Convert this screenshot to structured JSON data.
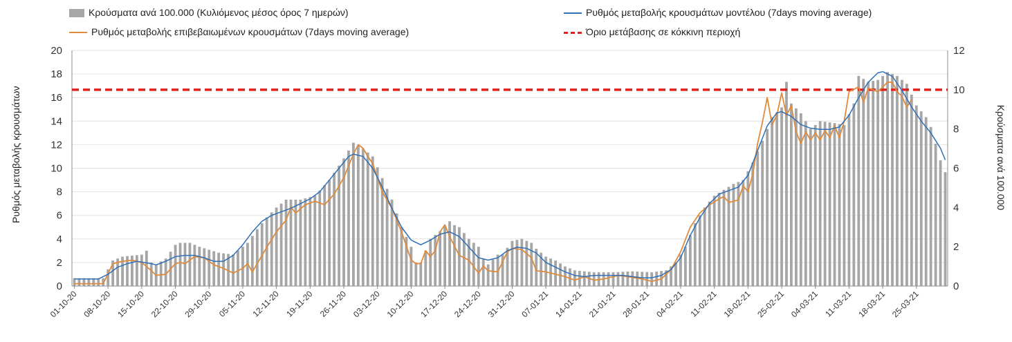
{
  "chart_data": {
    "type": "bar+line",
    "legend": {
      "bars": "Κρούσματα ανά 100.000 (Κυλιόμενος μέσος όρος 7 ημερών)",
      "orange": "Ρυθμός μεταβολής επιβεβαιωμένων κρουσμάτων (7days moving average)",
      "blue": "Ρυθμός μεταβολής κρουσμάτων μοντέλου (7days moving average)",
      "red": "Όριο μετάβασης σε κόκκινη περιοχή"
    },
    "ylabel_left": "Ρυθμός μεταβολής κρουσμάτων",
    "ylabel_right": "Κρούσματα ανά 100.000",
    "ylim_left": [
      0,
      20
    ],
    "yticks_left": [
      "0",
      "2",
      "4",
      "6",
      "8",
      "10",
      "12",
      "14",
      "16",
      "18",
      "20"
    ],
    "ylim_right": [
      0,
      12
    ],
    "yticks_right": [
      "0",
      "2",
      "4",
      "6",
      "8",
      "10",
      "12"
    ],
    "threshold_right": 10,
    "x_ticks": [
      "01-10-20",
      "08-10-20",
      "15-10-20",
      "22-10-20",
      "29-10-20",
      "05-11-20",
      "12-11-20",
      "19-11-20",
      "26-11-20",
      "03-12-20",
      "10-12-20",
      "17-12-20",
      "24-12-20",
      "31-12-20",
      "07-01-21",
      "14-01-21",
      "21-01-21",
      "28-01-21",
      "04-02-21",
      "11-02-21",
      "18-02-21",
      "25-02-21",
      "04-03-21",
      "11-03-21",
      "18-03-21",
      "25-03-21"
    ],
    "days": 182,
    "bars_keyframes": [
      [
        0,
        0.4
      ],
      [
        6,
        0.4
      ],
      [
        8,
        1.3
      ],
      [
        10,
        1.5
      ],
      [
        14,
        1.6
      ],
      [
        15,
        1.8
      ],
      [
        16,
        1.2
      ],
      [
        17,
        1.1
      ],
      [
        19,
        1.4
      ],
      [
        21,
        2.1
      ],
      [
        22,
        2.2
      ],
      [
        24,
        2.2
      ],
      [
        26,
        2.0
      ],
      [
        30,
        1.7
      ],
      [
        33,
        1.6
      ],
      [
        36,
        2.2
      ],
      [
        38,
        2.9
      ],
      [
        40,
        3.5
      ],
      [
        42,
        4.0
      ],
      [
        44,
        4.4
      ],
      [
        47,
        4.4
      ],
      [
        50,
        4.6
      ],
      [
        53,
        5.4
      ],
      [
        56,
        6.5
      ],
      [
        58,
        7.3
      ],
      [
        60,
        7.0
      ],
      [
        62,
        6.6
      ],
      [
        64,
        5.5
      ],
      [
        66,
        4.4
      ],
      [
        68,
        3.0
      ],
      [
        70,
        2.0
      ],
      [
        71,
        1.2
      ],
      [
        72,
        1.2
      ],
      [
        74,
        2.4
      ],
      [
        76,
        2.8
      ],
      [
        78,
        3.3
      ],
      [
        79,
        3.1
      ],
      [
        80,
        3.0
      ],
      [
        82,
        2.4
      ],
      [
        84,
        2.0
      ],
      [
        85,
        1.4
      ],
      [
        86,
        1.1
      ],
      [
        88,
        1.6
      ],
      [
        89,
        1.6
      ],
      [
        91,
        2.3
      ],
      [
        93,
        2.4
      ],
      [
        95,
        2.2
      ],
      [
        96,
        1.9
      ],
      [
        98,
        1.5
      ],
      [
        100,
        1.3
      ],
      [
        102,
        1.0
      ],
      [
        104,
        0.8
      ],
      [
        108,
        0.7
      ],
      [
        112,
        0.7
      ],
      [
        116,
        0.75
      ],
      [
        120,
        0.7
      ],
      [
        123,
        0.8
      ],
      [
        125,
        1.2
      ],
      [
        127,
        2.0
      ],
      [
        129,
        3.2
      ],
      [
        131,
        4.0
      ],
      [
        133,
        4.6
      ],
      [
        135,
        4.9
      ],
      [
        137,
        5.2
      ],
      [
        139,
        5.4
      ],
      [
        141,
        6.3
      ],
      [
        143,
        7.4
      ],
      [
        145,
        8.6
      ],
      [
        147,
        9.1
      ],
      [
        148,
        10.4
      ],
      [
        149,
        9.3
      ],
      [
        151,
        8.8
      ],
      [
        153,
        8.0
      ],
      [
        155,
        8.4
      ],
      [
        158,
        8.3
      ],
      [
        160,
        8.2
      ],
      [
        162,
        9.3
      ],
      [
        163,
        10.7
      ],
      [
        165,
        10.4
      ],
      [
        167,
        10.5
      ],
      [
        169,
        10.9
      ],
      [
        171,
        10.7
      ],
      [
        173,
        10.3
      ],
      [
        175,
        9.2
      ],
      [
        177,
        8.6
      ],
      [
        178,
        8.1
      ],
      [
        180,
        6.4
      ],
      [
        181,
        5.8
      ]
    ],
    "orange_keyframes": [
      [
        0,
        0.2
      ],
      [
        6,
        0.2
      ],
      [
        8,
        1.9
      ],
      [
        10,
        2.1
      ],
      [
        12,
        2.2
      ],
      [
        14,
        2.0
      ],
      [
        16,
        1.3
      ],
      [
        17,
        0.9
      ],
      [
        19,
        1.0
      ],
      [
        21,
        1.9
      ],
      [
        22,
        2.0
      ],
      [
        23,
        1.9
      ],
      [
        25,
        2.5
      ],
      [
        27,
        2.4
      ],
      [
        29,
        1.8
      ],
      [
        31,
        1.5
      ],
      [
        33,
        1.1
      ],
      [
        35,
        1.5
      ],
      [
        36,
        1.9
      ],
      [
        37,
        1.2
      ],
      [
        38,
        1.9
      ],
      [
        40,
        3.3
      ],
      [
        42,
        4.6
      ],
      [
        44,
        5.6
      ],
      [
        45,
        6.7
      ],
      [
        46,
        6.2
      ],
      [
        48,
        6.9
      ],
      [
        50,
        7.2
      ],
      [
        52,
        6.9
      ],
      [
        54,
        7.8
      ],
      [
        56,
        9.2
      ],
      [
        58,
        11.2
      ],
      [
        59,
        12.0
      ],
      [
        60,
        11.7
      ],
      [
        61,
        11.0
      ],
      [
        62,
        10.4
      ],
      [
        64,
        8.0
      ],
      [
        66,
        6.6
      ],
      [
        68,
        4.6
      ],
      [
        70,
        2.2
      ],
      [
        71,
        1.9
      ],
      [
        72,
        1.9
      ],
      [
        73,
        3.0
      ],
      [
        74,
        2.5
      ],
      [
        75,
        3.0
      ],
      [
        76,
        4.6
      ],
      [
        77,
        5.2
      ],
      [
        78,
        4.2
      ],
      [
        80,
        2.6
      ],
      [
        82,
        2.2
      ],
      [
        84,
        1.1
      ],
      [
        85,
        1.7
      ],
      [
        86,
        1.3
      ],
      [
        88,
        1.2
      ],
      [
        90,
        2.9
      ],
      [
        91,
        3.2
      ],
      [
        93,
        3.1
      ],
      [
        95,
        2.4
      ],
      [
        96,
        1.3
      ],
      [
        98,
        1.2
      ],
      [
        100,
        1.0
      ],
      [
        102,
        0.8
      ],
      [
        104,
        0.5
      ],
      [
        106,
        0.8
      ],
      [
        108,
        0.5
      ],
      [
        110,
        0.6
      ],
      [
        113,
        0.9
      ],
      [
        115,
        0.8
      ],
      [
        118,
        0.6
      ],
      [
        120,
        0.4
      ],
      [
        122,
        0.6
      ],
      [
        124,
        1.4
      ],
      [
        126,
        2.9
      ],
      [
        128,
        5.0
      ],
      [
        130,
        6.2
      ],
      [
        132,
        6.9
      ],
      [
        134,
        7.4
      ],
      [
        135,
        7.6
      ],
      [
        136,
        7.1
      ],
      [
        138,
        7.3
      ],
      [
        139,
        8.5
      ],
      [
        140,
        8.0
      ],
      [
        141,
        9.5
      ],
      [
        142,
        12.1
      ],
      [
        143,
        13.9
      ],
      [
        144,
        16.0
      ],
      [
        145,
        13.7
      ],
      [
        146,
        14.5
      ],
      [
        147,
        16.4
      ],
      [
        148,
        14.5
      ],
      [
        149,
        15.3
      ],
      [
        150,
        13.1
      ],
      [
        151,
        12.1
      ],
      [
        152,
        13.1
      ],
      [
        153,
        12.4
      ],
      [
        154,
        13.0
      ],
      [
        155,
        12.4
      ],
      [
        156,
        13.2
      ],
      [
        157,
        12.6
      ],
      [
        158,
        13.6
      ],
      [
        159,
        12.6
      ],
      [
        160,
        14.0
      ],
      [
        161,
        16.5
      ],
      [
        163,
        16.9
      ],
      [
        164,
        15.6
      ],
      [
        165,
        16.8
      ],
      [
        167,
        16.5
      ],
      [
        169,
        17.3
      ],
      [
        170,
        17.3
      ],
      [
        171,
        16.5
      ],
      [
        172,
        16.1
      ],
      [
        173,
        15.2
      ],
      [
        174,
        15.8
      ]
    ],
    "blue_keyframes": [
      [
        0,
        0.6
      ],
      [
        5,
        0.6
      ],
      [
        7,
        1.0
      ],
      [
        9,
        1.6
      ],
      [
        11,
        1.9
      ],
      [
        13,
        2.1
      ],
      [
        16,
        1.9
      ],
      [
        17,
        1.8
      ],
      [
        19,
        2.1
      ],
      [
        21,
        2.5
      ],
      [
        23,
        2.6
      ],
      [
        25,
        2.6
      ],
      [
        27,
        2.4
      ],
      [
        29,
        2.1
      ],
      [
        31,
        2.1
      ],
      [
        33,
        2.6
      ],
      [
        35,
        3.5
      ],
      [
        37,
        4.6
      ],
      [
        39,
        5.5
      ],
      [
        41,
        6.0
      ],
      [
        43,
        6.3
      ],
      [
        45,
        6.6
      ],
      [
        47,
        7.0
      ],
      [
        49,
        7.4
      ],
      [
        51,
        8.0
      ],
      [
        53,
        9.0
      ],
      [
        55,
        10.0
      ],
      [
        57,
        11.0
      ],
      [
        58,
        11.2
      ],
      [
        60,
        11.0
      ],
      [
        62,
        10.0
      ],
      [
        64,
        8.4
      ],
      [
        66,
        6.6
      ],
      [
        68,
        5.0
      ],
      [
        70,
        3.9
      ],
      [
        72,
        3.5
      ],
      [
        74,
        3.9
      ],
      [
        76,
        4.4
      ],
      [
        78,
        4.6
      ],
      [
        80,
        4.2
      ],
      [
        82,
        3.3
      ],
      [
        84,
        2.4
      ],
      [
        86,
        2.2
      ],
      [
        88,
        2.4
      ],
      [
        90,
        3.0
      ],
      [
        92,
        3.3
      ],
      [
        94,
        3.2
      ],
      [
        96,
        2.8
      ],
      [
        98,
        2.0
      ],
      [
        100,
        1.6
      ],
      [
        102,
        1.2
      ],
      [
        104,
        0.9
      ],
      [
        106,
        0.8
      ],
      [
        108,
        0.9
      ],
      [
        110,
        0.9
      ],
      [
        112,
        0.9
      ],
      [
        114,
        0.9
      ],
      [
        116,
        0.8
      ],
      [
        118,
        0.7
      ],
      [
        120,
        0.7
      ],
      [
        122,
        0.9
      ],
      [
        124,
        1.4
      ],
      [
        126,
        2.4
      ],
      [
        128,
        4.3
      ],
      [
        130,
        5.8
      ],
      [
        132,
        7.0
      ],
      [
        134,
        7.8
      ],
      [
        136,
        8.1
      ],
      [
        138,
        8.4
      ],
      [
        140,
        9.4
      ],
      [
        142,
        11.5
      ],
      [
        144,
        13.6
      ],
      [
        146,
        14.7
      ],
      [
        147,
        14.8
      ],
      [
        149,
        14.4
      ],
      [
        151,
        13.7
      ],
      [
        153,
        13.4
      ],
      [
        155,
        13.3
      ],
      [
        157,
        13.3
      ],
      [
        159,
        13.5
      ],
      [
        161,
        14.5
      ],
      [
        163,
        16.0
      ],
      [
        165,
        17.3
      ],
      [
        167,
        18.1
      ],
      [
        168,
        18.2
      ],
      [
        170,
        17.8
      ],
      [
        172,
        16.6
      ],
      [
        174,
        15.2
      ],
      [
        176,
        14.0
      ],
      [
        178,
        13.0
      ],
      [
        180,
        11.7
      ],
      [
        182,
        9.7
      ]
    ],
    "grid": "horizontal",
    "legend_position": "top"
  }
}
